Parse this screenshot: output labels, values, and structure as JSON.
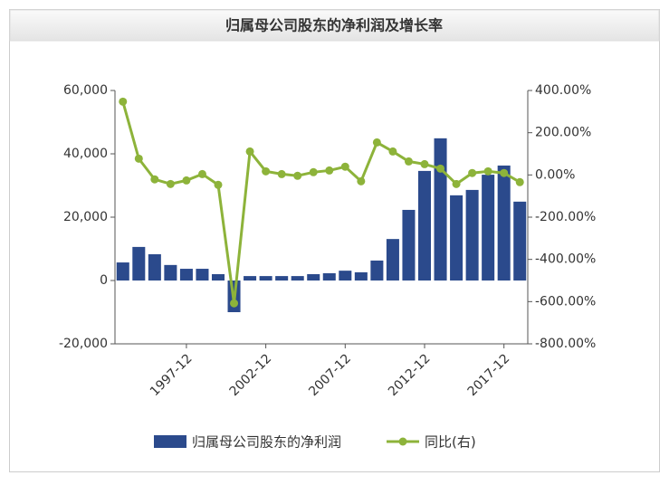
{
  "chart_data": {
    "type": "bar-line",
    "title": "归属母公司股东的净利润及增长率",
    "categories": [
      null,
      null,
      null,
      null,
      "1997-12",
      null,
      null,
      null,
      null,
      "2002-12",
      null,
      null,
      null,
      null,
      "2007-12",
      null,
      null,
      null,
      null,
      "2012-12",
      null,
      null,
      null,
      null,
      "2017-12",
      null
    ],
    "series": [
      {
        "name": "归属母公司股东的净利润",
        "type": "bar",
        "color": "#2b4a8c",
        "values": [
          5700,
          10600,
          8300,
          4900,
          3700,
          3700,
          2000,
          -10000,
          1400,
          1400,
          1400,
          1400,
          2000,
          2300,
          3100,
          2600,
          6300,
          13100,
          22300,
          34600,
          44900,
          26900,
          28600,
          33400,
          36300,
          24900
        ]
      },
      {
        "name": "同比(右)",
        "type": "line",
        "axis": "y2",
        "color": "#8db33a",
        "values": [
          347,
          77,
          -21,
          -43,
          -26,
          4,
          -47,
          -608,
          111,
          17,
          4,
          -4,
          13,
          21,
          39,
          -30,
          154,
          111,
          64,
          51,
          30,
          -43,
          9,
          17,
          9,
          -34
        ]
      }
    ],
    "ylim": [
      -20000,
      60000
    ],
    "yticks": [
      {
        "value": -20000,
        "label": "-20,000"
      },
      0,
      {
        "value": 20000,
        "label": "20,000"
      },
      {
        "value": 40000,
        "label": "40,000"
      },
      {
        "value": 60000,
        "label": "60,000"
      }
    ],
    "y2lim": [
      -800,
      400
    ],
    "y2ticks": [
      {
        "value": -800,
        "label": "-800.00%"
      },
      {
        "value": -600,
        "label": "-600.00%"
      },
      {
        "value": -400,
        "label": "-400.00%"
      },
      {
        "value": -200,
        "label": "-200.00%"
      },
      {
        "value": 0,
        "label": "0.00%"
      },
      {
        "value": 200,
        "label": "200.00%"
      },
      {
        "value": 400,
        "label": "400.00%"
      }
    ]
  }
}
